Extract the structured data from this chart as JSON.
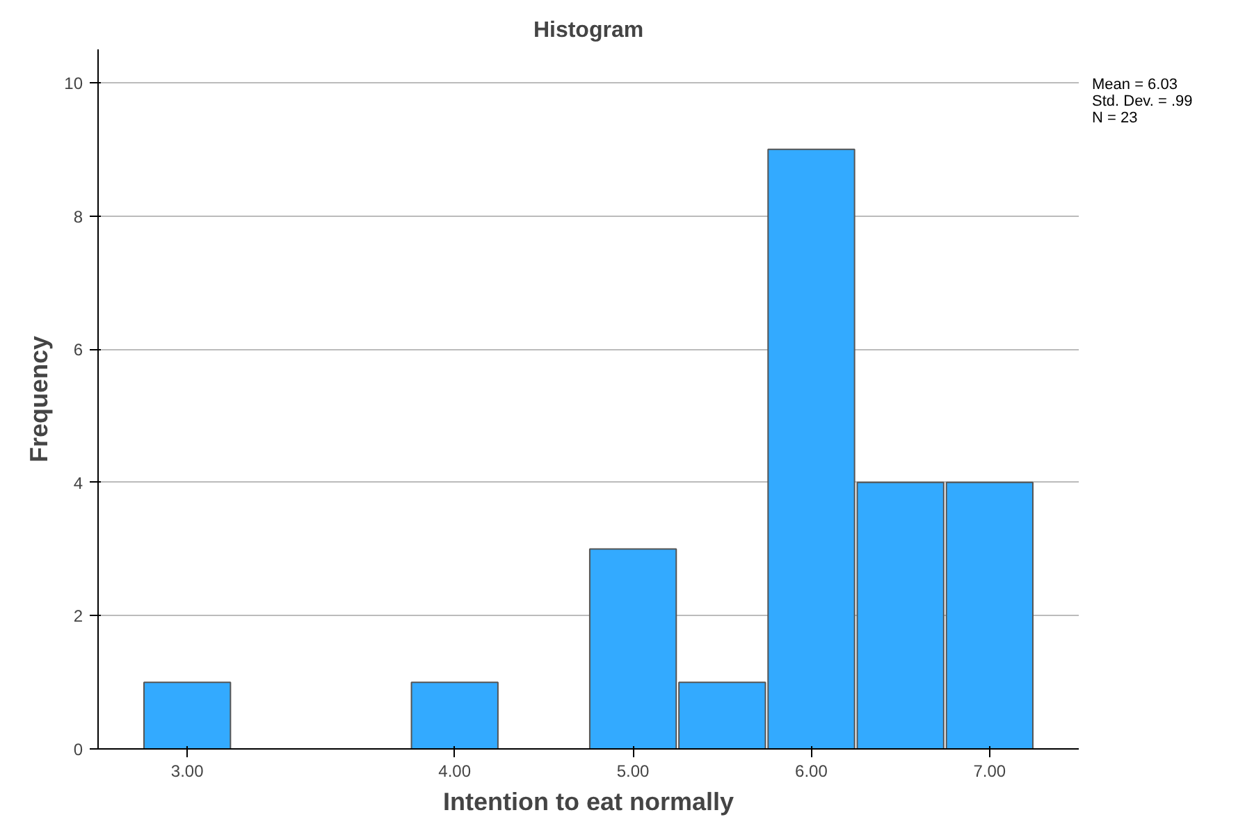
{
  "chart_data": {
    "type": "bar",
    "title": "Histogram",
    "xlabel": "Intention to eat normally",
    "ylabel": "Frequency",
    "categories": [
      "3.00",
      null,
      null,
      "4.00",
      null,
      "5.00",
      null,
      "6.00",
      null,
      "7.00"
    ],
    "values": [
      1,
      0,
      0,
      1,
      0,
      3,
      1,
      9,
      4,
      4
    ],
    "color": "#33aaff",
    "ylim": [
      0,
      10.5
    ],
    "yticks": [
      0,
      2,
      4,
      6,
      8,
      10
    ],
    "grid": "y",
    "annotations": [
      "Mean = 6.03",
      "Std. Dev. = .99",
      "N = 23"
    ]
  }
}
